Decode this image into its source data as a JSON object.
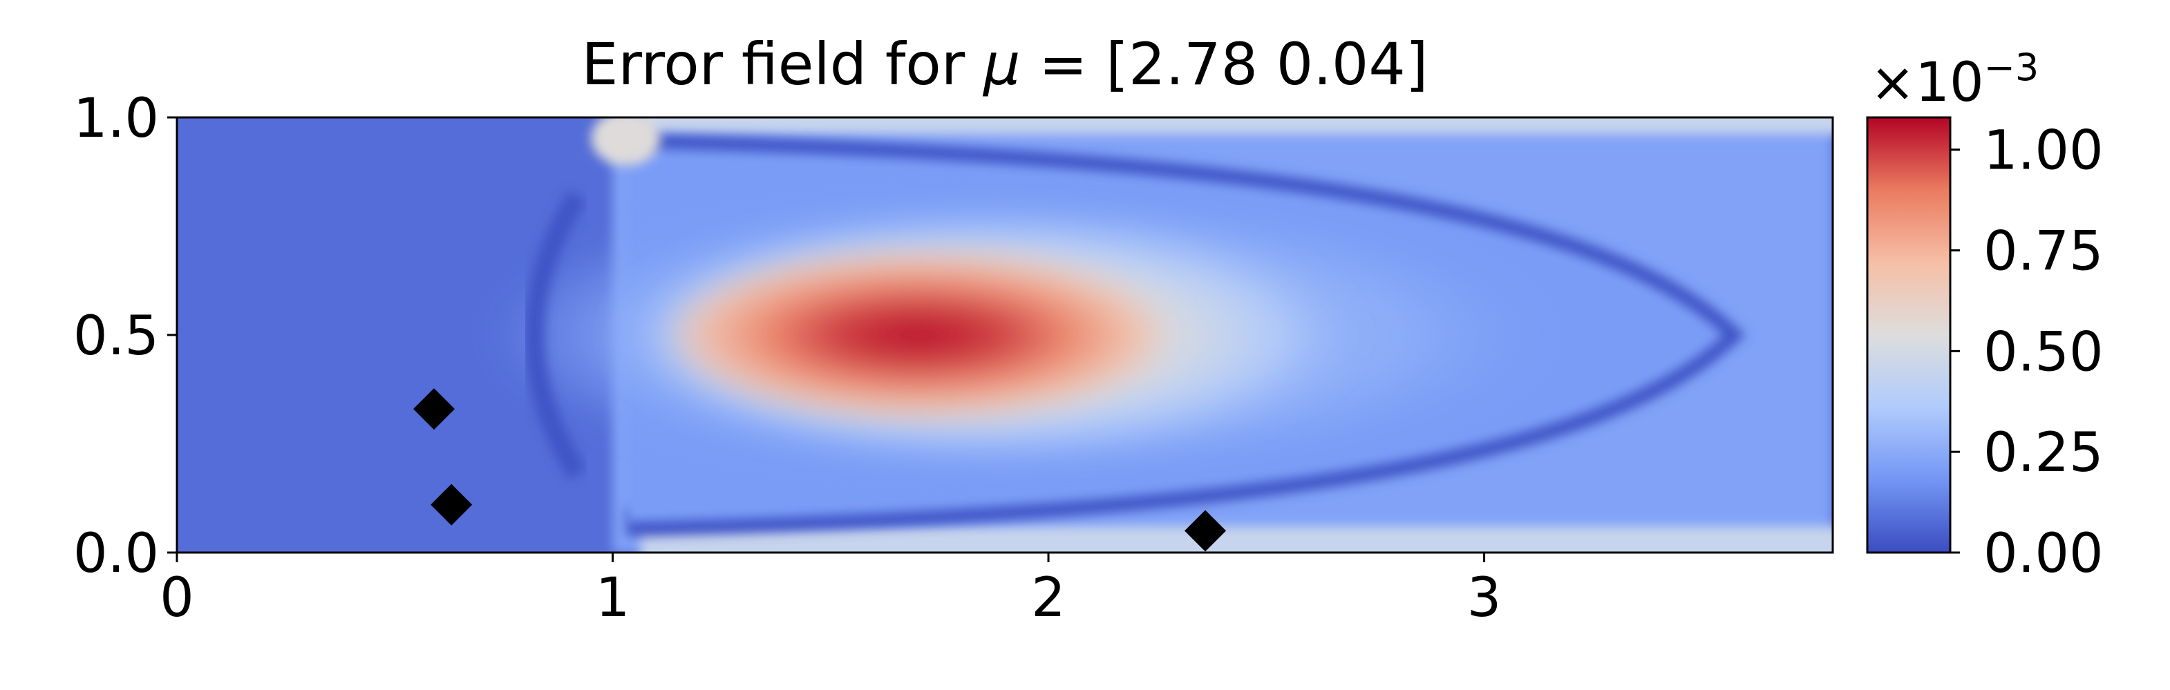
{
  "chart_data": {
    "type": "heatmap",
    "title": "Error field for μ = [2.78 0.04]",
    "title_parts": {
      "prefix": "Error field for ",
      "symbol": "μ",
      "suffix": " = [2.78 0.04]"
    },
    "xlabel": "",
    "ylabel": "",
    "xlim": [
      0,
      3.8
    ],
    "ylim": [
      0,
      1.0
    ],
    "x_ticks": [
      {
        "value": 0,
        "label": "0"
      },
      {
        "value": 1,
        "label": "1"
      },
      {
        "value": 2,
        "label": "2"
      },
      {
        "value": 3,
        "label": "3"
      }
    ],
    "y_ticks": [
      {
        "value": 0.0,
        "label": "0.0"
      },
      {
        "value": 0.5,
        "label": "0.5"
      },
      {
        "value": 1.0,
        "label": "1.0"
      }
    ],
    "colormap": "coolwarm",
    "colormap_stops": [
      "#3b4cc0",
      "#7396f5",
      "#b0cbfc",
      "#dddddd",
      "#f6bfa6",
      "#ea7b60",
      "#b40426"
    ],
    "colorbar": {
      "range": [
        0,
        0.00108
      ],
      "multiplier_base": "×10",
      "multiplier_exponent": "−3",
      "ticks": [
        {
          "value": 0.0,
          "label": "0.00"
        },
        {
          "value": 0.25,
          "label": "0.25"
        },
        {
          "value": 0.5,
          "label": "0.50"
        },
        {
          "value": 0.75,
          "label": "0.75"
        },
        {
          "value": 1.0,
          "label": "1.00"
        }
      ]
    },
    "field_features": {
      "peak_error": 1.07,
      "peak_location": [
        1.7,
        0.5
      ],
      "background_error": 0.08,
      "inflow_boundary_x": 1.0
    },
    "markers": {
      "shape": "diamond",
      "color": "#000000",
      "points": [
        {
          "x": 0.59,
          "y": 0.33
        },
        {
          "x": 0.63,
          "y": 0.11
        },
        {
          "x": 2.36,
          "y": 0.05
        }
      ]
    }
  }
}
